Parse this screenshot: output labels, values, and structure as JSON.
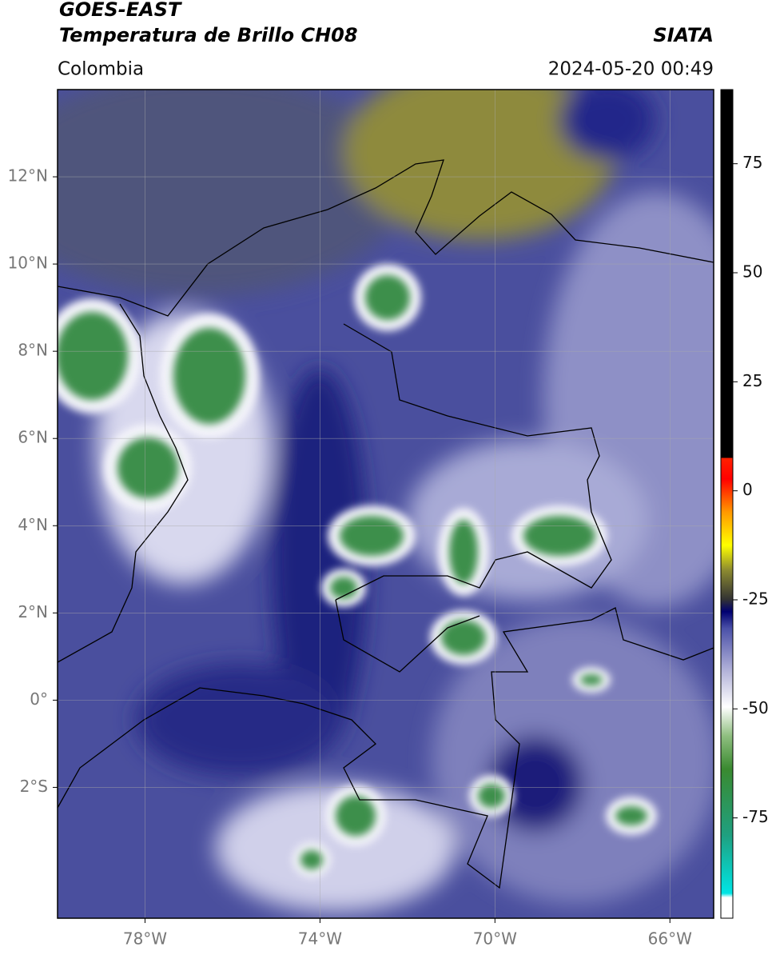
{
  "header": {
    "title": "GOES-EAST",
    "subtitle": "Temperatura de Brillo CH08",
    "source": "SIATA",
    "region": "Colombia",
    "datetime": "2024-05-20 00:49"
  },
  "map": {
    "lonlim": [
      -80,
      -65
    ],
    "latlim": [
      -5,
      14
    ],
    "lonticks": [
      {
        "value": -78,
        "label": "78°W"
      },
      {
        "value": -74,
        "label": "74°W"
      },
      {
        "value": -70,
        "label": "70°W"
      },
      {
        "value": -66,
        "label": "66°W"
      }
    ],
    "latticks": [
      {
        "value": 12,
        "label": "12°N"
      },
      {
        "value": 10,
        "label": "10°N"
      },
      {
        "value": 8,
        "label": "8°N"
      },
      {
        "value": 6,
        "label": "6°N"
      },
      {
        "value": 4,
        "label": "4°N"
      },
      {
        "value": 2,
        "label": "2°N"
      },
      {
        "value": 0,
        "label": "0°"
      },
      {
        "value": -2,
        "label": "2°S"
      }
    ]
  },
  "colorbar": {
    "range": [
      -98,
      92
    ],
    "ticks": [
      75,
      50,
      25,
      0,
      -25,
      -50,
      -75
    ]
  }
}
